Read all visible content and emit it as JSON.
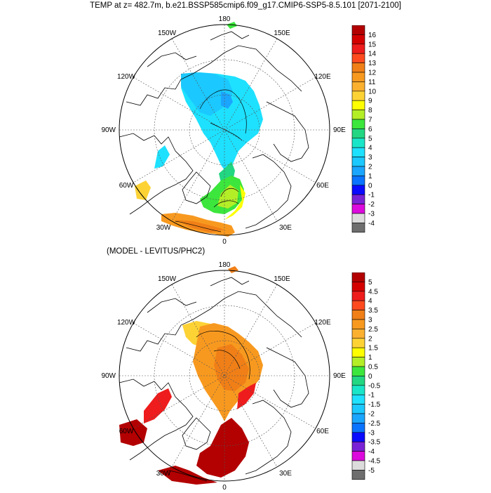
{
  "title": "TEMP at z= 482.7m, b.e21.BSSP585cmip6.f09_g17.CMIP6-SSP5-8.5.101 [2071-2100]",
  "panel2_title": "(MODEL - LEVITUS/PHC2)",
  "lon_labels": [
    "180",
    "150W",
    "150E",
    "120W",
    "120E",
    "90W",
    "90E",
    "60W",
    "60E",
    "30W",
    "30E",
    "0"
  ],
  "colorbar_top": {
    "labels": [
      "16",
      "15",
      "14",
      "13",
      "12",
      "11",
      "10",
      "9",
      "8",
      "7",
      "6",
      "5",
      "4",
      "3",
      "2",
      "1",
      "0",
      "-1",
      "-2",
      "-3",
      "-4"
    ],
    "colors": [
      "#b30000",
      "#d40000",
      "#ee1c1c",
      "#fe4a1e",
      "#f07f17",
      "#f8991f",
      "#fbb030",
      "#fdd235",
      "#ffff00",
      "#b4ee27",
      "#3ce63c",
      "#22d682",
      "#19e6c8",
      "#1ee1ff",
      "#1bc8ff",
      "#1aa5ff",
      "#0a73ff",
      "#0a0aff",
      "#7a22d6",
      "#dc0adc",
      "#dcdcdc",
      "#6e6e6e"
    ]
  },
  "colorbar_bottom": {
    "labels": [
      "5",
      "4.5",
      "4",
      "3.5",
      "3",
      "2.5",
      "2",
      "1.5",
      "1",
      "0.5",
      "0",
      "-0.5",
      "-1",
      "-1.5",
      "-2",
      "-2.5",
      "-3",
      "-3.5",
      "-4",
      "-4.5",
      "-5"
    ],
    "colors": [
      "#b30000",
      "#d40000",
      "#ee1c1c",
      "#fe4a1e",
      "#f07f17",
      "#f8991f",
      "#fbb030",
      "#fdd235",
      "#ffff00",
      "#b4ee27",
      "#3ce63c",
      "#22d682",
      "#19e6c8",
      "#1ee1ff",
      "#1bc8ff",
      "#1aa5ff",
      "#0a73ff",
      "#0a0aff",
      "#7a22d6",
      "#dc0adc",
      "#dcdcdc",
      "#6e6e6e"
    ]
  }
}
